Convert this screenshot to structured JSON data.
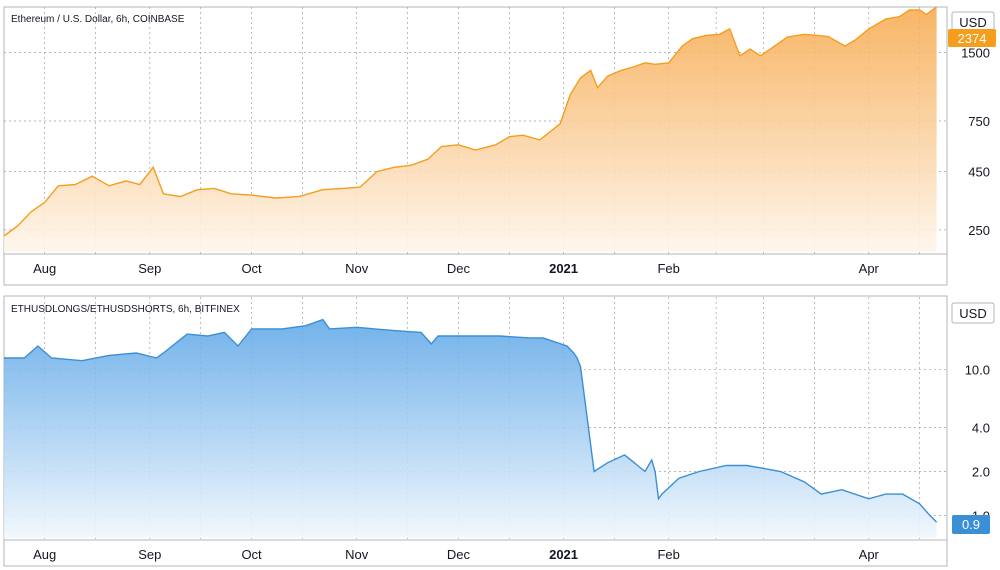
{
  "chart_data": [
    {
      "type": "area",
      "title": "Ethereum / U.S. Dollar, 6h, COINBASE",
      "currency_label": "USD",
      "last_value_label": "2374",
      "scale": "log",
      "ylim": [
        200,
        2300
      ],
      "y_ticks": [
        {
          "value": 250,
          "label": "250"
        },
        {
          "value": 450,
          "label": "450"
        },
        {
          "value": 750,
          "label": "750"
        },
        {
          "value": 1500,
          "label": "1500"
        }
      ],
      "line_color": "#f59d1c",
      "fill_top_color": "#f6a84a",
      "fill_bottom_color": "#fef6ec",
      "x": [
        "2020-07-20",
        "2020-07-24",
        "2020-07-28",
        "2020-08-01",
        "2020-08-05",
        "2020-08-10",
        "2020-08-15",
        "2020-08-20",
        "2020-08-25",
        "2020-08-29",
        "2020-09-02",
        "2020-09-05",
        "2020-09-10",
        "2020-09-15",
        "2020-09-20",
        "2020-09-25",
        "2020-10-01",
        "2020-10-08",
        "2020-10-15",
        "2020-10-22",
        "2020-10-28",
        "2020-11-02",
        "2020-11-07",
        "2020-11-12",
        "2020-11-17",
        "2020-11-22",
        "2020-11-26",
        "2020-12-01",
        "2020-12-06",
        "2020-12-12",
        "2020-12-16",
        "2020-12-20",
        "2020-12-25",
        "2020-12-31",
        "2021-01-03",
        "2021-01-06",
        "2021-01-09",
        "2021-01-11",
        "2021-01-14",
        "2021-01-18",
        "2021-01-22",
        "2021-01-25",
        "2021-01-28",
        "2021-02-01",
        "2021-02-05",
        "2021-02-08",
        "2021-02-12",
        "2021-02-16",
        "2021-02-19",
        "2021-02-22",
        "2021-02-25",
        "2021-02-28",
        "2021-03-03",
        "2021-03-08",
        "2021-03-13",
        "2021-03-17",
        "2021-03-20",
        "2021-03-25",
        "2021-03-28",
        "2021-04-01",
        "2021-04-06",
        "2021-04-10",
        "2021-04-13",
        "2021-04-16",
        "2021-04-18",
        "2021-04-21"
      ],
      "values": [
        235,
        260,
        300,
        330,
        390,
        395,
        430,
        390,
        410,
        395,
        470,
        360,
        350,
        375,
        380,
        360,
        355,
        345,
        350,
        375,
        380,
        385,
        450,
        470,
        480,
        510,
        580,
        590,
        560,
        590,
        640,
        650,
        620,
        730,
        980,
        1160,
        1250,
        1050,
        1180,
        1250,
        1300,
        1350,
        1330,
        1350,
        1600,
        1720,
        1780,
        1800,
        1900,
        1450,
        1550,
        1450,
        1550,
        1750,
        1800,
        1780,
        1760,
        1600,
        1700,
        1900,
        2100,
        2150,
        2300,
        2300,
        2200,
        2374
      ]
    },
    {
      "type": "area",
      "title": "ETHUSDLONGS/ETHUSDSHORTS, 6h, BITFINEX",
      "currency_label": "USD",
      "last_value_label": "0.9",
      "scale": "log",
      "ylim": [
        0.7,
        30
      ],
      "y_ticks": [
        {
          "value": 1.0,
          "label": "1.0"
        },
        {
          "value": 2.0,
          "label": "2.0"
        },
        {
          "value": 4.0,
          "label": "4.0"
        },
        {
          "value": 10.0,
          "label": "10.0"
        }
      ],
      "line_color": "#3a8fd6",
      "fill_top_color": "#5aa5e6",
      "fill_bottom_color": "#f1f7fd",
      "x": [
        "2020-07-20",
        "2020-07-26",
        "2020-07-30",
        "2020-08-03",
        "2020-08-12",
        "2020-08-20",
        "2020-08-28",
        "2020-09-03",
        "2020-09-05",
        "2020-09-12",
        "2020-09-18",
        "2020-09-23",
        "2020-09-27",
        "2020-10-01",
        "2020-10-10",
        "2020-10-17",
        "2020-10-22",
        "2020-10-24",
        "2020-11-01",
        "2020-11-12",
        "2020-11-20",
        "2020-11-23",
        "2020-11-25",
        "2020-12-04",
        "2020-12-13",
        "2020-12-22",
        "2020-12-26",
        "2021-01-02",
        "2021-01-04",
        "2021-01-05",
        "2021-01-06",
        "2021-01-10",
        "2021-01-14",
        "2021-01-19",
        "2021-01-25",
        "2021-01-27",
        "2021-01-28",
        "2021-01-29",
        "2021-01-30",
        "2021-02-04",
        "2021-02-10",
        "2021-02-18",
        "2021-02-24",
        "2021-03-01",
        "2021-03-06",
        "2021-03-13",
        "2021-03-18",
        "2021-03-24",
        "2021-04-01",
        "2021-04-06",
        "2021-04-11",
        "2021-04-16",
        "2021-04-19",
        "2021-04-21"
      ],
      "values": [
        12,
        12,
        14.5,
        12,
        11.5,
        12.5,
        13,
        12,
        13,
        17.5,
        17,
        18,
        14.5,
        19,
        19,
        20,
        22,
        19,
        19.5,
        18.5,
        18,
        15,
        17,
        17,
        17,
        16.5,
        16.5,
        14.5,
        13,
        12,
        10.5,
        2.0,
        2.3,
        2.6,
        2.0,
        2.4,
        2.0,
        1.3,
        1.4,
        1.8,
        2.0,
        2.2,
        2.2,
        2.1,
        2.0,
        1.7,
        1.4,
        1.5,
        1.3,
        1.4,
        1.4,
        1.2,
        1.0,
        0.9
      ]
    }
  ],
  "x_axis": {
    "tick_labels": [
      {
        "date": "2020-08-01",
        "label": "Aug"
      },
      {
        "date": "2020-09-01",
        "label": "Sep"
      },
      {
        "date": "2020-10-01",
        "label": "Oct"
      },
      {
        "date": "2020-11-01",
        "label": "Nov"
      },
      {
        "date": "2020-12-01",
        "label": "Dec"
      },
      {
        "date": "2021-01-01",
        "label": "2021"
      },
      {
        "date": "2021-02-01",
        "label": "Feb"
      },
      {
        "date": "2021-04-01",
        "label": "Apr"
      }
    ],
    "grid_dates": [
      "2020-08-01",
      "2020-08-16",
      "2020-09-01",
      "2020-09-16",
      "2020-10-01",
      "2020-10-16",
      "2020-11-01",
      "2020-11-16",
      "2020-12-01",
      "2020-12-16",
      "2021-01-01",
      "2021-01-16",
      "2021-02-01",
      "2021-02-15",
      "2021-03-01",
      "2021-03-16",
      "2021-04-01",
      "2021-04-16"
    ]
  }
}
